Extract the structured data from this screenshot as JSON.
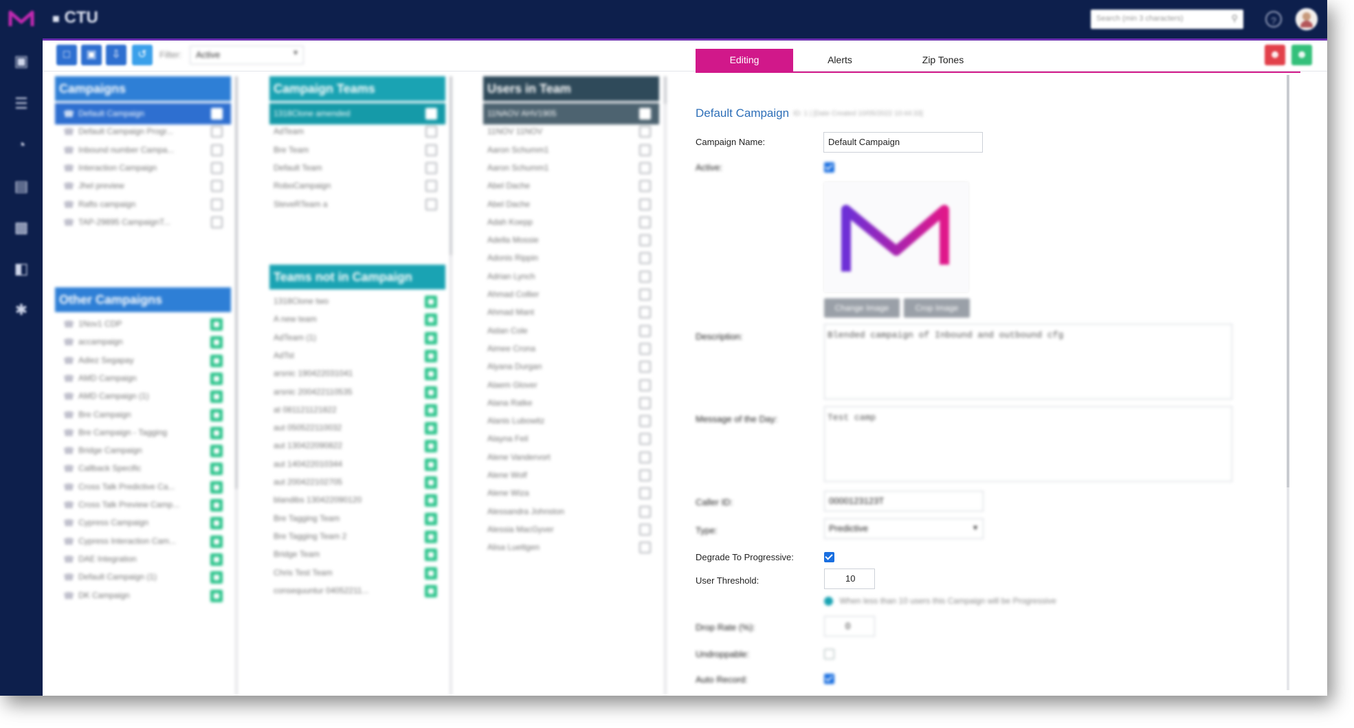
{
  "app": {
    "brand": "CTU",
    "search_placeholder": "Search (min 3 characters)"
  },
  "toolbar": {
    "filter_label": "Filter:",
    "filter_value": "Active"
  },
  "campaigns": {
    "title": "Campaigns",
    "items": [
      "Default Campaign",
      "Default Campaign Progr...",
      "Inbound number Campa...",
      "Interaction Campaign",
      "Jhel preview",
      "Rafts campaign",
      "TAP-29895 CampaignT..."
    ]
  },
  "other_campaigns": {
    "title": "Other Campaigns",
    "items": [
      "1Nov1 CDP",
      "accampaign",
      "Adiez Segapay",
      "AMD Campaign",
      "AMD Campaign (1)",
      "Bre Campaign",
      "Bre Campaign - Tagging",
      "Bridge Campaign",
      "Callback Specific",
      "Cross Talk Predictive Ca...",
      "Cross Talk Preview Camp...",
      "Cypress Campaign",
      "Cypress Interaction Cam...",
      "DAE Integration",
      "Default Campaign (1)",
      "DK Campaign"
    ]
  },
  "campaign_teams": {
    "title": "Campaign Teams",
    "items": [
      "1318Clone amended",
      "AdTeam",
      "Bre Team",
      "Default Team",
      "RoboCampaign",
      "SteveRTeam a"
    ]
  },
  "teams_not_in_campaign": {
    "title": "Teams not in Campaign",
    "items": [
      "1318Clone two",
      "A new team",
      "AdTeam (1)",
      "AdTst",
      "arsnic 190422031041",
      "arsnic 200422110535",
      "at 081121121822",
      "aut 050522110032",
      "aut 130422090822",
      "aut 140422010344",
      "aut 200422102705",
      "blandibs 130422090120",
      "Bre Tagging Team",
      "Bre Tagging Team 2",
      "Bridge Team",
      "Chris Test Team",
      "consequuntur 04052211..."
    ]
  },
  "users_in_team": {
    "title": "Users in Team",
    "items": [
      "11NAOV AHV1905",
      "11NOV 11NOV",
      "Aaron Schumm1",
      "Aaron Schumm1",
      "Abel Dache",
      "Abel Dache",
      "Adah Koepp",
      "Adella Mossie",
      "Adonis Rippin",
      "Adrian Lynch",
      "Ahmad Collier",
      "Ahmad Mant",
      "Aidan Cole",
      "Aimee Crona",
      "Alyana Durgan",
      "Alaem Glover",
      "Alana Ratke",
      "Alanis Lubowitz",
      "Alayna Feil",
      "Alene Vandervort",
      "Alene Wolf",
      "Alene Wiza",
      "Alessandra Johnston",
      "Alessia MacGyver",
      "Alisa Luettgen"
    ]
  },
  "tabs": [
    "Editing",
    "Alerts",
    "Zip Tones"
  ],
  "form": {
    "title": "Default Campaign",
    "meta": "ID: 1 | [Date Created 10/05/2022 10:44:33]",
    "campaign_name_label": "Campaign Name:",
    "campaign_name_value": "Default Campaign",
    "active_label": "Active:",
    "change_image": "Change Image",
    "crop_image": "Crop Image",
    "description_label": "Description:",
    "description_value": "Blended campaign of Inbound and outbound cfg",
    "motd_label": "Message of the Day:",
    "motd_value": "Test camp",
    "caller_id_label": "Caller ID:",
    "caller_id_value": "0000123123T",
    "type_label": "Type:",
    "type_value": "Predictive",
    "degrade_label": "Degrade To Progressive:",
    "user_threshold_label": "User Threshold:",
    "user_threshold_value": "10",
    "threshold_hint": "When less than 10 users this Campaign will be Progressive",
    "drop_rate_label": "Drop Rate (%):",
    "drop_rate_value": "0",
    "undroppable_label": "Undroppable:",
    "auto_record_label": "Auto Record:"
  },
  "colors": {
    "nav_bg": "#0d1f4c",
    "campaign_head": "#2e7fd6",
    "teams_head": "#1aa3b3",
    "users_head": "#2f4a5a",
    "accent": "#d1188a",
    "green": "#27c289"
  }
}
